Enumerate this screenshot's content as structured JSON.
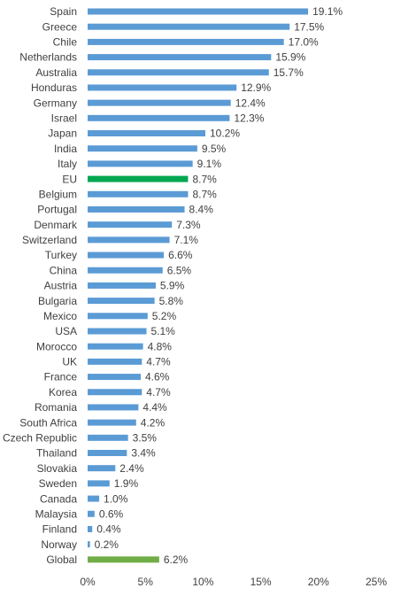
{
  "chart_data": {
    "type": "hbar",
    "categories": [
      "Spain",
      "Greece",
      "Chile",
      "Netherlands",
      "Australia",
      "Honduras",
      "Germany",
      "Israel",
      "Japan",
      "India",
      "Italy",
      "EU",
      "Belgium",
      "Portugal",
      "Denmark",
      "Switzerland",
      "Turkey",
      "China",
      "Austria",
      "Bulgaria",
      "Mexico",
      "USA",
      "Morocco",
      "UK",
      "France",
      "Korea",
      "Romania",
      "South Africa",
      "Czech Republic",
      "Thailand",
      "Slovakia",
      "Sweden",
      "Canada",
      "Malaysia",
      "Finland",
      "Norway",
      "Global"
    ],
    "values": [
      19.1,
      17.5,
      17.0,
      15.9,
      15.7,
      12.9,
      12.4,
      12.3,
      10.2,
      9.5,
      9.1,
      8.7,
      8.7,
      8.4,
      7.3,
      7.1,
      6.6,
      6.5,
      5.9,
      5.8,
      5.2,
      5.1,
      4.8,
      4.7,
      4.6,
      4.7,
      4.4,
      4.2,
      3.5,
      3.4,
      2.4,
      1.9,
      1.0,
      0.6,
      0.4,
      0.2,
      6.2
    ],
    "value_labels": [
      "19.1%",
      "17.5%",
      "17.0%",
      "15.9%",
      "15.7%",
      "12.9%",
      "12.4%",
      "12.3%",
      "10.2%",
      "9.5%",
      "9.1%",
      "8.7%",
      "8.7%",
      "8.4%",
      "7.3%",
      "7.1%",
      "6.6%",
      "6.5%",
      "5.9%",
      "5.8%",
      "5.2%",
      "5.1%",
      "4.8%",
      "4.7%",
      "4.6%",
      "4.7%",
      "4.4%",
      "4.2%",
      "3.5%",
      "3.4%",
      "2.4%",
      "1.9%",
      "1.0%",
      "0.6%",
      "0.4%",
      "0.2%",
      "6.2%"
    ],
    "colors": [
      "#5b9bd5",
      "#5b9bd5",
      "#5b9bd5",
      "#5b9bd5",
      "#5b9bd5",
      "#5b9bd5",
      "#5b9bd5",
      "#5b9bd5",
      "#5b9bd5",
      "#5b9bd5",
      "#5b9bd5",
      "#00a650",
      "#5b9bd5",
      "#5b9bd5",
      "#5b9bd5",
      "#5b9bd5",
      "#5b9bd5",
      "#5b9bd5",
      "#5b9bd5",
      "#5b9bd5",
      "#5b9bd5",
      "#5b9bd5",
      "#5b9bd5",
      "#5b9bd5",
      "#5b9bd5",
      "#5b9bd5",
      "#5b9bd5",
      "#5b9bd5",
      "#5b9bd5",
      "#5b9bd5",
      "#5b9bd5",
      "#5b9bd5",
      "#5b9bd5",
      "#5b9bd5",
      "#5b9bd5",
      "#5b9bd5",
      "#70ad47"
    ],
    "xlim": [
      0,
      25
    ],
    "xticks": [
      {
        "value": 0,
        "label": "0%"
      },
      {
        "value": 5,
        "label": "5%"
      },
      {
        "value": 10,
        "label": "10%"
      },
      {
        "value": 15,
        "label": "15%"
      },
      {
        "value": 20,
        "label": "20%"
      },
      {
        "value": 25,
        "label": "25%"
      }
    ],
    "grid": false
  }
}
